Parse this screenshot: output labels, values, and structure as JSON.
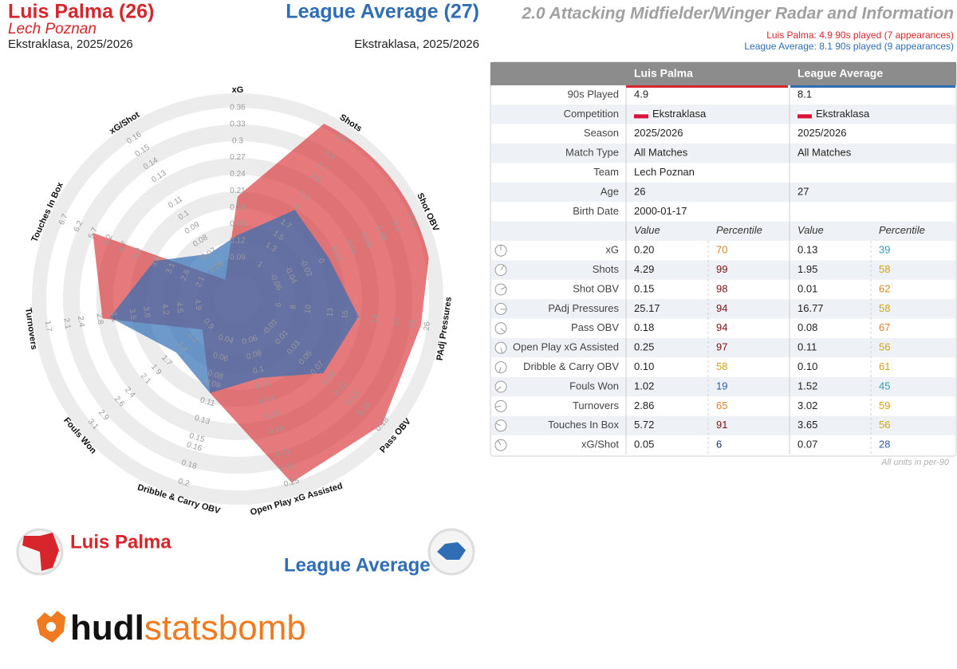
{
  "header": {
    "player_title": "Luis Palma (26)",
    "team": "Lech Poznan",
    "player_competition": "Ekstraklasa, 2025/2026",
    "average_title": "League Average (27)",
    "average_competition": "Ekstraklasa, 2025/2026",
    "chart_title": "2.0 Attacking Midfielder/Winger Radar and Information",
    "player_minutes": "Luis Palma: 4.9 90s played (7 appearances)",
    "average_minutes": "League Average: 8.1 90s played (9 appearances)"
  },
  "chart_data": {
    "type": "radar",
    "axes": [
      {
        "name": "xG",
        "lim": [
          0.015,
          0.36
        ],
        "ticks": [
          0.09,
          0.12,
          0.15,
          0.18,
          0.21,
          0.24,
          0.27,
          0.3,
          0.33,
          0.36
        ]
      },
      {
        "name": "Shots",
        "lim": [
          0.4,
          3.2
        ],
        "ticks": [
          1.0,
          1.3,
          1.5,
          1.7,
          2.0,
          2.2,
          2.5,
          2.7,
          2.9,
          3.2
        ]
      },
      {
        "name": "Shot OBV",
        "lim": [
          -0.11,
          0.12
        ],
        "ticks": [
          -0.06,
          -0.04,
          -0.02,
          0.0,
          0.02,
          0.04,
          0.06,
          0.08,
          0.1,
          0.12
        ]
      },
      {
        "name": "PAdj Pressures",
        "lim": [
          0.5,
          26
        ],
        "ticks": [
          6,
          8,
          10,
          13,
          15,
          17,
          19,
          22,
          24,
          26
        ]
      },
      {
        "name": "Pass OBV",
        "lim": [
          -0.065,
          0.18
        ],
        "ticks": [
          -0.01,
          0.01,
          0.03,
          0.05,
          0.07,
          0.09,
          0.11,
          0.13,
          0.15,
          0.18
        ]
      },
      {
        "name": "Open Play xG Assisted",
        "lim": [
          0.005,
          0.25
        ],
        "ticks": [
          0.06,
          0.08,
          0.1,
          0.12,
          0.14,
          0.16,
          0.18,
          0.21,
          0.23,
          0.25
        ]
      },
      {
        "name": "Dribble & Carry OBV",
        "lim": [
          -0.005,
          0.2
        ],
        "ticks": [
          0.04,
          0.06,
          0.08,
          0.09,
          0.11,
          0.13,
          0.15,
          0.16,
          0.18,
          0.2
        ]
      },
      {
        "name": "Fouls Won",
        "lim": [
          0.35,
          3.1
        ],
        "ticks": [
          0.9,
          1.2,
          1.4,
          1.7,
          1.9,
          2.1,
          2.4,
          2.6,
          2.9,
          3.1
        ]
      },
      {
        "name": "Turnovers",
        "lim": [
          5.75,
          1.7
        ],
        "ticks": [
          4.9,
          4.5,
          4.2,
          3.8,
          3.5,
          3.1,
          2.8,
          2.4,
          2.1,
          1.7
        ]
      },
      {
        "name": "Touches In Box",
        "lim": [
          0.85,
          6.7
        ],
        "ticks": [
          2.1,
          2.6,
          3.1,
          3.6,
          4.2,
          4.7,
          5.2,
          5.7,
          6.2,
          6.7
        ]
      },
      {
        "name": "xG/Shot",
        "lim": [
          0.035,
          0.16
        ],
        "ticks": [
          0.06,
          0.07,
          0.08,
          0.09,
          0.1,
          0.11,
          0.13,
          0.14,
          0.15,
          0.16
        ]
      }
    ],
    "series": [
      {
        "name": "Luis Palma",
        "color": "#d7262b",
        "values": [
          0.2,
          4.29,
          0.15,
          25.17,
          0.18,
          0.25,
          0.1,
          1.02,
          2.86,
          5.72,
          0.05
        ]
      },
      {
        "name": "League Average",
        "color": "#2f6db5",
        "values": [
          0.13,
          1.95,
          0.01,
          16.77,
          0.08,
          0.11,
          0.1,
          1.52,
          3.02,
          3.65,
          0.07
        ]
      }
    ]
  },
  "table": {
    "columns": [
      "Luis Palma",
      "League Average"
    ],
    "info_rows": [
      [
        "90s Played",
        "4.9",
        "8.1"
      ],
      [
        "Competition",
        "Ekstraklasa",
        "Ekstraklasa"
      ],
      [
        "Season",
        "2025/2026",
        "2025/2026"
      ],
      [
        "Match Type",
        "All Matches",
        "All Matches"
      ],
      [
        "Team",
        "Lech Poznan"
      ],
      [
        "Age",
        "26",
        "27"
      ],
      [
        "Birth Date",
        "2000-01-17"
      ]
    ],
    "subheader": [
      "Value",
      "Percentile",
      "Value",
      "Percentile"
    ],
    "metric_rows": [
      [
        "xG",
        "0.20",
        "70",
        "0.13",
        "39"
      ],
      [
        "Shots",
        "4.29",
        "99",
        "1.95",
        "58"
      ],
      [
        "Shot OBV",
        "0.15",
        "98",
        "0.01",
        "62"
      ],
      [
        "PAdj Pressures",
        "25.17",
        "94",
        "16.77",
        "58"
      ],
      [
        "Pass OBV",
        "0.18",
        "94",
        "0.08",
        "67"
      ],
      [
        "Open Play xG Assisted",
        "0.25",
        "97",
        "0.11",
        "56"
      ],
      [
        "Dribble & Carry OBV",
        "0.10",
        "58",
        "0.10",
        "61"
      ],
      [
        "Fouls Won",
        "1.02",
        "19",
        "1.52",
        "45"
      ],
      [
        "Turnovers",
        "2.86",
        "65",
        "3.02",
        "59"
      ],
      [
        "Touches In Box",
        "5.72",
        "91",
        "3.65",
        "56"
      ],
      [
        "xG/Shot",
        "0.05",
        "6",
        "0.07",
        "28"
      ]
    ],
    "footnote": "All units in per-90"
  },
  "logo": {
    "hudl": "hudl",
    "statsbomb": "statsbomb"
  }
}
